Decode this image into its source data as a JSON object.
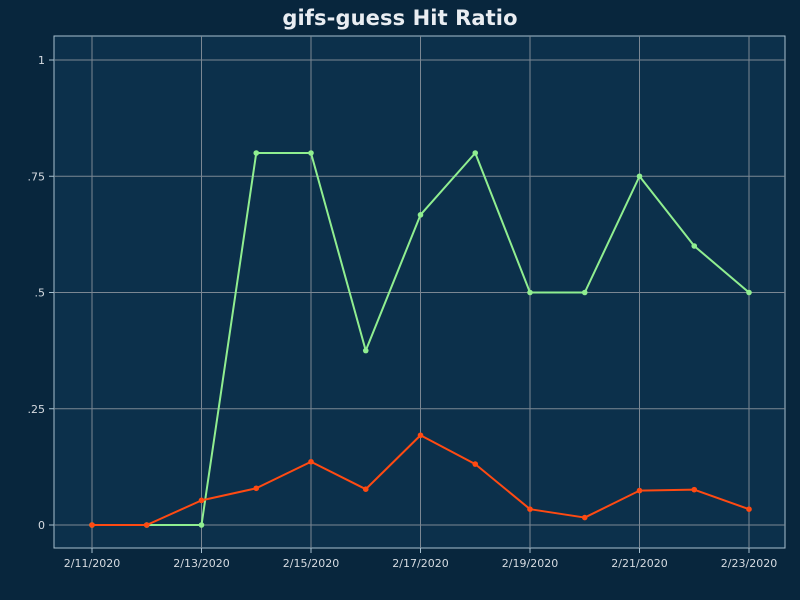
{
  "title": "gifs-guess Hit Ratio",
  "colors": {
    "page_background": "#08263d",
    "plot_background": "#0c304b",
    "grid": "#7b8793",
    "axis": "#a7c0cf",
    "text": "#e9edf2"
  },
  "chart_data": {
    "type": "line",
    "title": "gifs-guess Hit Ratio",
    "xlabel": "",
    "ylabel": "",
    "categories": [
      "2/11/2020",
      "2/12/2020",
      "2/13/2020",
      "2/14/2020",
      "2/15/2020",
      "2/16/2020",
      "2/17/2020",
      "2/18/2020",
      "2/19/2020",
      "2/20/2020",
      "2/21/2020",
      "2/22/2020",
      "2/23/2020"
    ],
    "x_tick_labels": [
      "2/11/2020",
      "2/13/2020",
      "2/15/2020",
      "2/17/2020",
      "2/19/2020",
      "2/21/2020",
      "2/23/2020"
    ],
    "y_ticks": [
      {
        "value": 0,
        "label": "0"
      },
      {
        "value": 0.25,
        "label": ".25"
      },
      {
        "value": 0.5,
        "label": ".5"
      },
      {
        "value": 0.75,
        "label": ".75"
      },
      {
        "value": 1,
        "label": "1"
      }
    ],
    "ylim": [
      -0.05,
      1.05
    ],
    "grid": true,
    "legend": "none",
    "series": [
      {
        "color": "#90ee90",
        "values": [
          0,
          0,
          0,
          0.8,
          0.8,
          0.375,
          0.667,
          0.8,
          0.5,
          0.5,
          0.75,
          0.6,
          0.5
        ]
      },
      {
        "color": "#ff4a12",
        "values": [
          0,
          0,
          0.053,
          0.079,
          0.136,
          0.077,
          0.193,
          0.131,
          0.034,
          0.016,
          0.074,
          0.076,
          0.034
        ]
      }
    ]
  }
}
